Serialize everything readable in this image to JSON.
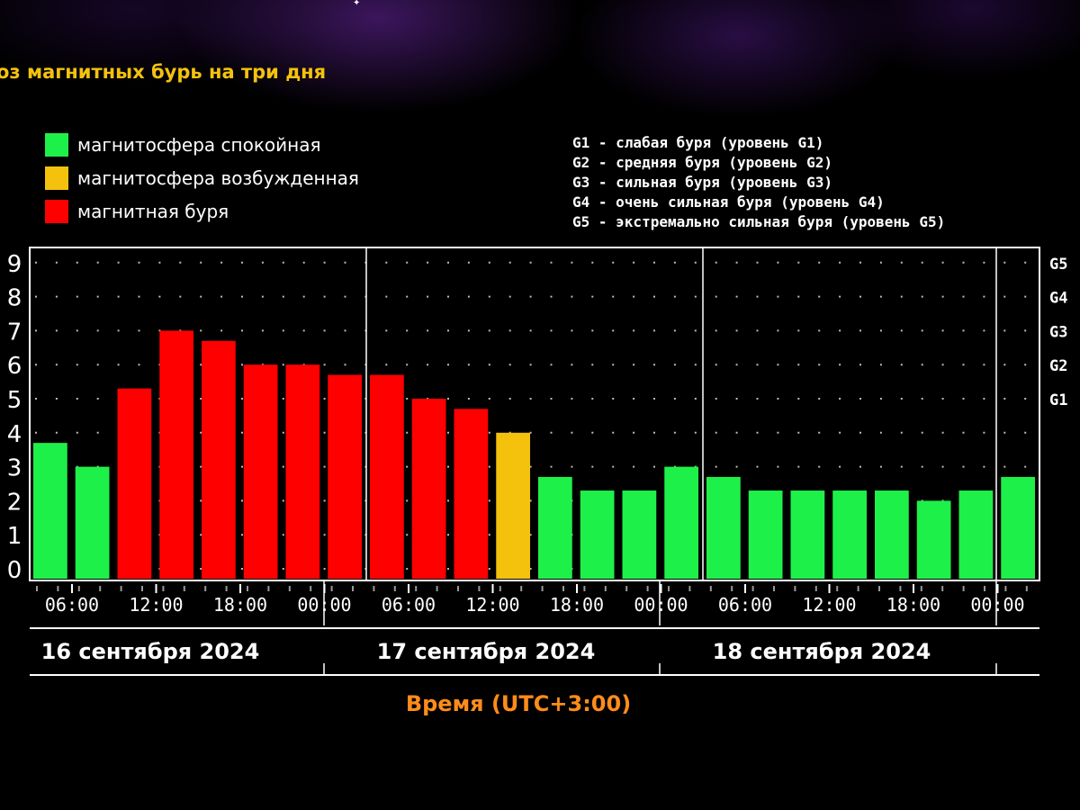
{
  "title": "оз магнитных бурь на три дня",
  "legend": [
    {
      "label": "магнитосфера спокойная",
      "color": "#1ef04a"
    },
    {
      "label": "магнитосфера возбужденная",
      "color": "#f4c20d"
    },
    {
      "label": "магнитная буря",
      "color": "#ff0000"
    }
  ],
  "g_legend": [
    "G1 - слабая буря (уровень G1)",
    "G2 - средняя буря (уровень G2)",
    "G3 - сильная буря (уровень G3)",
    "G4 - очень сильная буря (уровень G4)",
    "G5 - экстремально сильная буря (уровень G5)"
  ],
  "chart_data": {
    "type": "bar",
    "ylim": [
      0,
      9
    ],
    "y_ticks": [
      "0",
      "1",
      "2",
      "3",
      "4",
      "5",
      "6",
      "7",
      "8",
      "9"
    ],
    "right_axis": [
      {
        "label": "G1",
        "value": 5
      },
      {
        "label": "G2",
        "value": 6
      },
      {
        "label": "G3",
        "value": 7
      },
      {
        "label": "G4",
        "value": 8
      },
      {
        "label": "G5",
        "value": 9
      }
    ],
    "grid": true,
    "time_ticks": [
      "06:00",
      "12:00",
      "18:00",
      "00:00",
      "06:00",
      "12:00",
      "18:00",
      "00:00",
      "06:00",
      "12:00",
      "18:00",
      "00:00"
    ],
    "days": [
      "16 сентября 2024",
      "17 сентября 2024",
      "18 сентября 2024"
    ],
    "xlabel": "Время (UTC+3:00)",
    "values": [
      3.7,
      3.0,
      5.3,
      7.0,
      6.7,
      6.0,
      6.0,
      5.7,
      5.7,
      5.0,
      4.7,
      4.0,
      2.7,
      2.3,
      2.3,
      3.0,
      2.7,
      2.3,
      2.3,
      2.3,
      2.3,
      2.0,
      2.3,
      2.7
    ],
    "levels": [
      "quiet",
      "quiet",
      "storm",
      "storm",
      "storm",
      "storm",
      "storm",
      "storm",
      "storm",
      "storm",
      "storm",
      "active",
      "quiet",
      "quiet",
      "quiet",
      "quiet",
      "quiet",
      "quiet",
      "quiet",
      "quiet",
      "quiet",
      "quiet",
      "quiet",
      "quiet"
    ],
    "level_colors": {
      "quiet": "#1ef04a",
      "active": "#f4c20d",
      "storm": "#ff0000"
    }
  }
}
